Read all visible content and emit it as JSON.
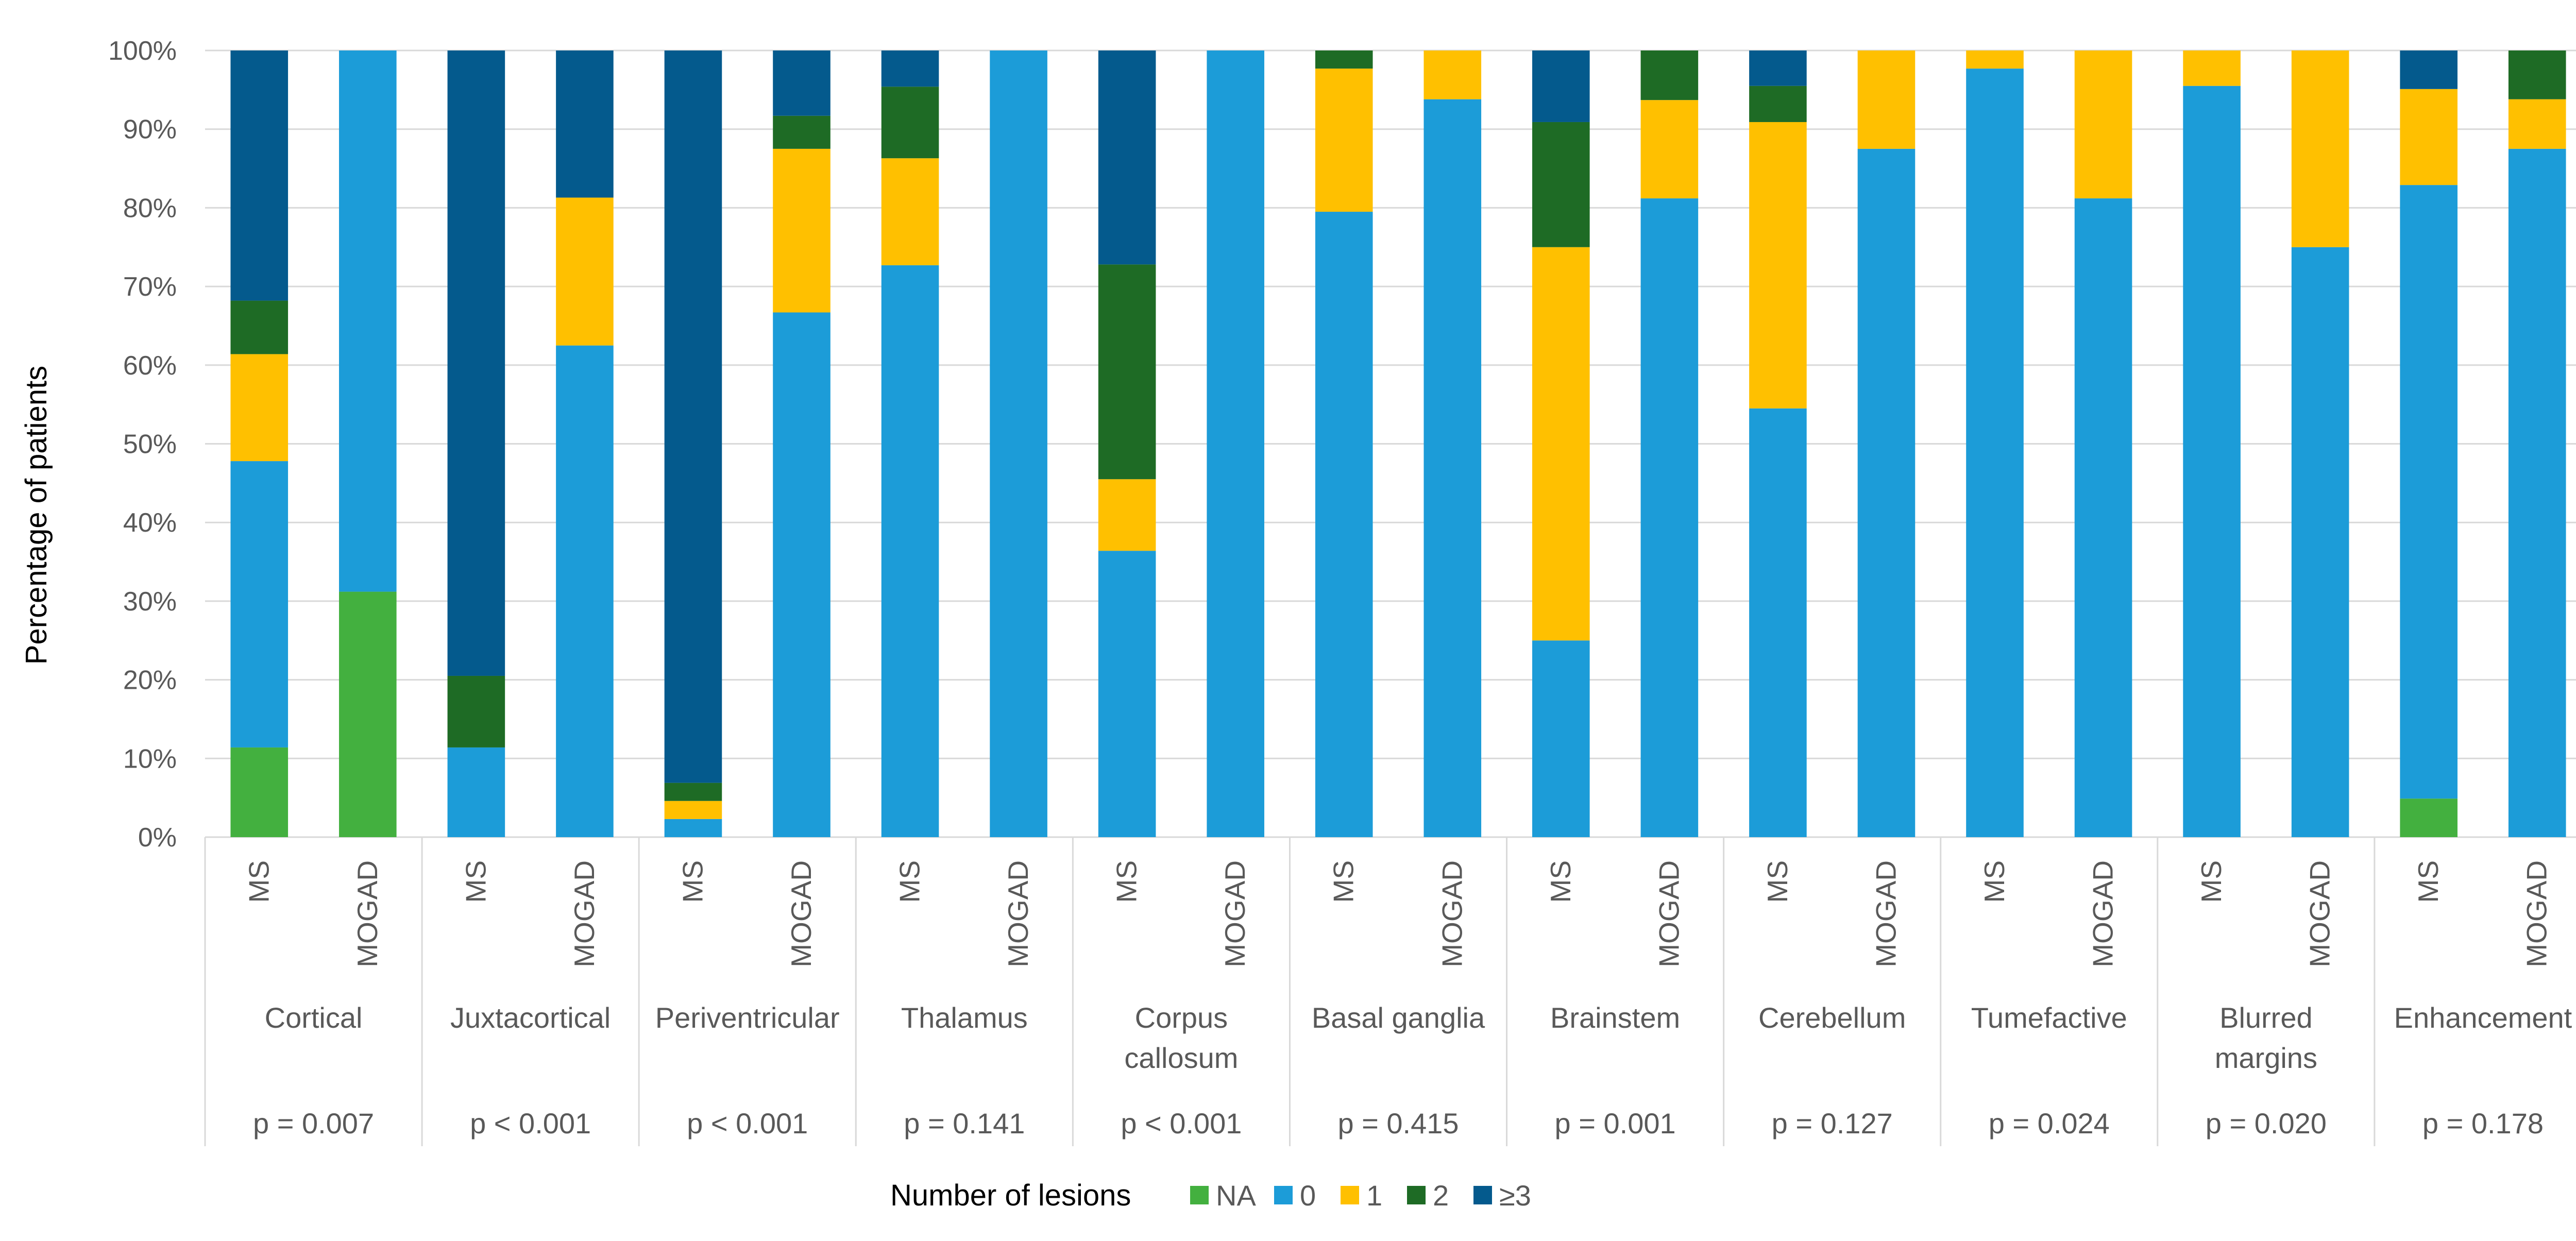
{
  "chart_data": {
    "type": "bar",
    "stacked": true,
    "percent_stacked": true,
    "ylabel": "Percentage of patients",
    "yticks": [
      "0%",
      "10%",
      "20%",
      "30%",
      "40%",
      "50%",
      "60%",
      "70%",
      "80%",
      "90%",
      "100%"
    ],
    "ylim": [
      0,
      100
    ],
    "grid": true,
    "legend_position": "bottom",
    "legend_title": "Number of lesions",
    "series": [
      {
        "name": "NA",
        "color": "#43B03F"
      },
      {
        "name": "0",
        "color": "#1C9CD8"
      },
      {
        "name": "1",
        "color": "#FFC000"
      },
      {
        "name": "2",
        "color": "#1E6B25"
      },
      {
        "name": "≥3",
        "color": "#045A8D"
      }
    ],
    "groups": [
      {
        "label": "Cortical",
        "p_value": "p = 0.007",
        "bars": [
          {
            "label": "MS",
            "values": [
              11.4,
              36.4,
              13.6,
              6.8,
              31.8
            ]
          },
          {
            "label": "MOGAD",
            "values": [
              31.2,
              68.8,
              0,
              0,
              0
            ]
          }
        ]
      },
      {
        "label": "Juxtacortical",
        "p_value": "p < 0.001",
        "bars": [
          {
            "label": "MS",
            "values": [
              0,
              11.4,
              0,
              9.1,
              79.5
            ]
          },
          {
            "label": "MOGAD",
            "values": [
              0,
              62.5,
              18.8,
              0,
              18.7
            ]
          }
        ]
      },
      {
        "label": "Periventricular",
        "p_value": "p < 0.001",
        "bars": [
          {
            "label": "MS",
            "values": [
              0,
              2.3,
              2.3,
              2.3,
              93.1
            ]
          },
          {
            "label": "MOGAD",
            "values": [
              0,
              66.7,
              20.8,
              4.2,
              8.3
            ]
          }
        ]
      },
      {
        "label": "Thalamus",
        "p_value": "p = 0.141",
        "bars": [
          {
            "label": "MS",
            "values": [
              0,
              72.7,
              13.6,
              9.1,
              4.6
            ]
          },
          {
            "label": "MOGAD",
            "values": [
              0,
              100,
              0,
              0,
              0
            ]
          }
        ]
      },
      {
        "label": "Corpus callosum",
        "p_value": "p < 0.001",
        "bars": [
          {
            "label": "MS",
            "values": [
              0,
              36.4,
              9.1,
              27.3,
              27.2
            ]
          },
          {
            "label": "MOGAD",
            "values": [
              0,
              100,
              0,
              0,
              0
            ]
          }
        ]
      },
      {
        "label": "Basal ganglia",
        "p_value": "p = 0.415",
        "bars": [
          {
            "label": "MS",
            "values": [
              0,
              79.5,
              18.2,
              2.3,
              0
            ]
          },
          {
            "label": "MOGAD",
            "values": [
              0,
              93.8,
              6.2,
              0,
              0
            ]
          }
        ]
      },
      {
        "label": "Brainstem",
        "p_value": "p = 0.001",
        "bars": [
          {
            "label": "MS",
            "values": [
              0,
              25.0,
              50.0,
              15.9,
              9.1
            ]
          },
          {
            "label": "MOGAD",
            "values": [
              0,
              81.2,
              12.5,
              6.3,
              0
            ]
          }
        ]
      },
      {
        "label": "Cerebellum",
        "p_value": "p = 0.127",
        "bars": [
          {
            "label": "MS",
            "values": [
              0,
              54.5,
              36.4,
              4.6,
              4.5
            ]
          },
          {
            "label": "MOGAD",
            "values": [
              0,
              87.5,
              12.5,
              0,
              0
            ]
          }
        ]
      },
      {
        "label": "Tumefactive",
        "p_value": "p = 0.024",
        "bars": [
          {
            "label": "MS",
            "values": [
              0,
              97.7,
              2.3,
              0,
              0
            ]
          },
          {
            "label": "MOGAD",
            "values": [
              0,
              81.2,
              18.8,
              0,
              0
            ]
          }
        ]
      },
      {
        "label": "Blurred margins",
        "p_value": "p = 0.020",
        "bars": [
          {
            "label": "MS",
            "values": [
              0,
              95.5,
              4.5,
              0,
              0
            ]
          },
          {
            "label": "MOGAD",
            "values": [
              0,
              75.0,
              25.0,
              0,
              0
            ]
          }
        ]
      },
      {
        "label": "Enhancement",
        "p_value": "p = 0.178",
        "bars": [
          {
            "label": "MS",
            "values": [
              4.9,
              78.0,
              12.2,
              0,
              4.9
            ]
          },
          {
            "label": "MOGAD",
            "values": [
              0,
              87.5,
              6.3,
              6.2,
              0
            ]
          }
        ]
      }
    ]
  }
}
